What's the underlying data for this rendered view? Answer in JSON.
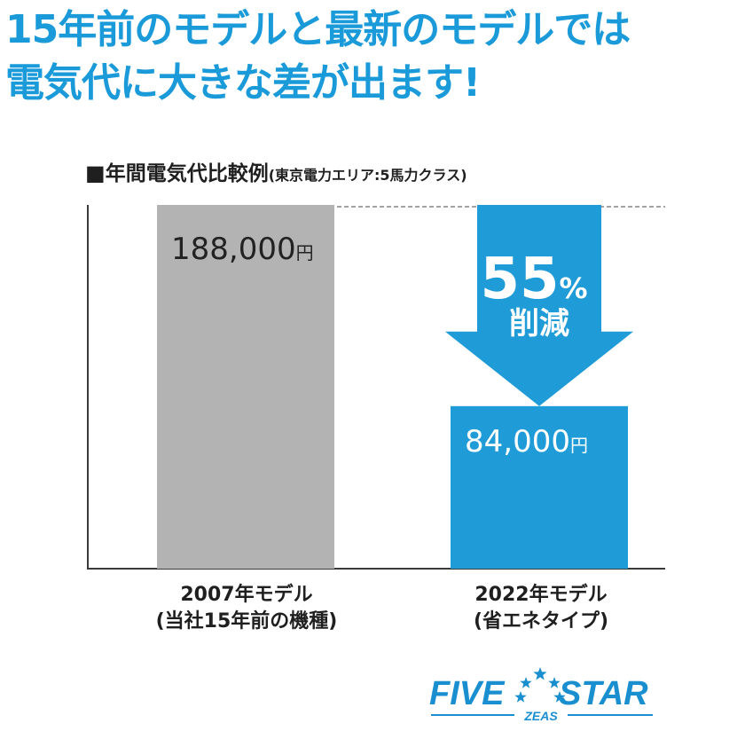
{
  "headline": {
    "line1": "15年前のモデルと最新のモデルでは",
    "line2": "電気代に大きな差が出ます!"
  },
  "chart_data": {
    "type": "bar",
    "title_marker": "■",
    "title": "年間電気代比較例",
    "subtitle": "(東京電力エリア:5馬力クラス)",
    "categories": [
      {
        "line1": "2007年モデル",
        "line2": "(当社15年前の機種)"
      },
      {
        "line1": "2022年モデル",
        "line2": "(省エネタイプ)"
      }
    ],
    "values": [
      188000,
      84000
    ],
    "value_labels": [
      "188,000",
      "84,000"
    ],
    "unit": "円",
    "ylim": [
      0,
      188000
    ],
    "colors": [
      "#b3b3b3",
      "#1f9bd7"
    ],
    "annotation": {
      "percent": "55",
      "percent_sign": "%",
      "text": "削減",
      "color": "#1f9bd7"
    }
  },
  "logo": {
    "main_left": "FIVE",
    "main_right": "STAR",
    "sub": "ZEAS",
    "color": "#1a8fd0"
  }
}
